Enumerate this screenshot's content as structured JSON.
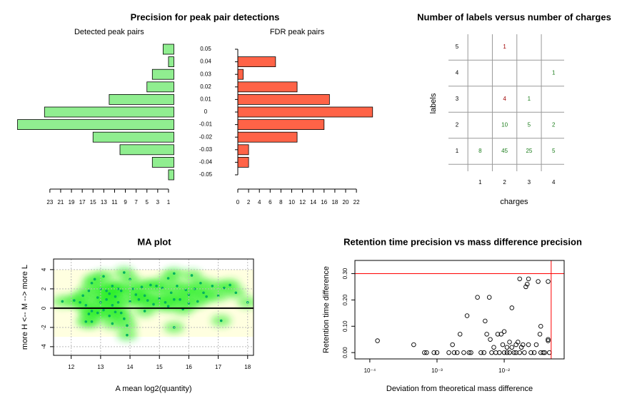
{
  "chart_data": [
    {
      "type": "hbar-pair",
      "title": "Precision for peak pair detections",
      "categories": [
        "0.05",
        "0.04",
        "0.03",
        "0.02",
        "0.01",
        "0",
        "-0.01",
        "-0.02",
        "-0.03",
        "-0.04",
        "-0.05"
      ],
      "series": [
        {
          "name": "Detected peak pairs",
          "color": "#90ee90",
          "values": [
            2,
            1,
            4,
            5,
            12,
            24,
            29,
            15,
            10,
            4,
            1
          ],
          "xlim": [
            29,
            0
          ],
          "xticks": [
            23,
            21,
            19,
            17,
            15,
            13,
            11,
            9,
            7,
            5,
            3,
            1
          ]
        },
        {
          "name": "FDR peak pairs",
          "color": "#ff6347",
          "values": [
            0,
            7,
            1,
            11,
            17,
            25,
            16,
            11,
            2,
            2,
            0
          ],
          "xlim": [
            0,
            25
          ],
          "xticks": [
            0,
            2,
            4,
            6,
            8,
            10,
            12,
            14,
            16,
            18,
            20,
            22
          ]
        }
      ]
    },
    {
      "type": "count-grid",
      "title": "Number of labels versus number of charges",
      "xlabel": "charges",
      "ylabel": "labels",
      "xlim": [
        0,
        4.6
      ],
      "ylim": [
        0.5,
        5.5
      ],
      "xticks": [
        1,
        2,
        3,
        4
      ],
      "yticks": [
        1,
        2,
        3,
        4,
        5
      ],
      "cells": [
        {
          "x": 1,
          "y": 1,
          "count": 8,
          "color": "#1b7d1b"
        },
        {
          "x": 2,
          "y": 1,
          "count": 45,
          "color": "#1b7d1b"
        },
        {
          "x": 3,
          "y": 1,
          "count": 25,
          "color": "#1b7d1b"
        },
        {
          "x": 4,
          "y": 1,
          "count": 5,
          "color": "#1b7d1b"
        },
        {
          "x": 2,
          "y": 2,
          "count": 10,
          "color": "#1b7d1b"
        },
        {
          "x": 3,
          "y": 2,
          "count": 5,
          "color": "#1b7d1b"
        },
        {
          "x": 4,
          "y": 2,
          "count": 2,
          "color": "#1b7d1b"
        },
        {
          "x": 2,
          "y": 3,
          "count": 4,
          "color": "#a00000"
        },
        {
          "x": 3,
          "y": 3,
          "count": 1,
          "color": "#1b7d1b"
        },
        {
          "x": 4,
          "y": 4,
          "count": 1,
          "color": "#1b7d1b"
        },
        {
          "x": 2,
          "y": 5,
          "count": 1,
          "color": "#a00000"
        }
      ]
    },
    {
      "type": "scatter",
      "title": "MA plot",
      "xlabel": "A   mean log2(quantity)",
      "ylabel": "more H <--     M     --> more L",
      "xlim": [
        11.4,
        18.2
      ],
      "ylim": [
        -4.9,
        5.1
      ],
      "xticks": [
        12,
        13,
        14,
        15,
        16,
        17,
        18
      ],
      "yticks": [
        -4,
        -2,
        0,
        2,
        4
      ],
      "grid": true,
      "density": true,
      "color": "#00b060",
      "hline": 0,
      "line_color": "#000000",
      "x": [
        12.4,
        12.6,
        12.7,
        12.8,
        12.5,
        12.7,
        12.6,
        12.5,
        12.7,
        12.9,
        12.3,
        11.7,
        12.1,
        13.0,
        13.1,
        13.2,
        13.3,
        13.4,
        13.5,
        13.6,
        13.7,
        13.2,
        13.0,
        13.4,
        13.6,
        13.5,
        13.3,
        13.7,
        13.8,
        13.4,
        13.9,
        13.9,
        13.8,
        14.0,
        14.1,
        14.2,
        14.3,
        14.0,
        14.4,
        14.5,
        14.6,
        14.7,
        14.8,
        15.0,
        15.1,
        15.2,
        15.3,
        15.5,
        15.4,
        15.6,
        15.7,
        15.9,
        16.0,
        16.1,
        15.5,
        15.5,
        15.8,
        16.2,
        16.3,
        16.5,
        16.4,
        16.6,
        16.8,
        17.0,
        17.2,
        17.4,
        17.6,
        17.1,
        18.0,
        14.5,
        12.9,
        13.1,
        14.9,
        16.0,
        15.3
      ],
      "y": [
        1.3,
        1.8,
        2.6,
        3.0,
        0.3,
        -0.3,
        -0.6,
        -1.4,
        -1.4,
        -0.5,
        0.6,
        0.7,
        0.8,
        2.0,
        3.3,
        1.8,
        1.5,
        2.3,
        1.2,
        2.0,
        1.8,
        0.9,
        0.6,
        0.3,
        0.6,
        -0.4,
        -0.8,
        -0.5,
        -1.1,
        -1.6,
        -1.8,
        -2.8,
        3.7,
        3.0,
        2.0,
        1.4,
        0.9,
        0.7,
        2.2,
        -0.3,
        0.8,
        2.4,
        0.4,
        1.0,
        2.1,
        0.6,
        0.2,
        3.6,
        1.6,
        2.3,
        0.9,
        1.9,
        0.5,
        3.4,
        -2.0,
        0.9,
        -0.1,
        2.0,
        0.7,
        1.6,
        2.6,
        1.2,
        2.3,
        1.3,
        2.1,
        2.4,
        1.6,
        -1.3,
        0.6,
        1.3,
        1.1,
        -0.2,
        2.3,
        1.4,
        3.1
      ]
    },
    {
      "type": "scatter",
      "title": "Retention time precision vs mass difference precision",
      "xlabel": "Deviation from theoretical mass difference",
      "ylabel": "Retention time difference",
      "log_x": true,
      "xlim": [
        6e-05,
        0.078
      ],
      "ylim": [
        -0.024,
        0.35
      ],
      "xticks": [
        {
          "value": 0.0001,
          "label": "10⁻⁴"
        },
        {
          "value": 0.001,
          "label": "10⁻³"
        },
        {
          "value": 0.01,
          "label": "10⁻²"
        }
      ],
      "yticks": [
        {
          "value": 0,
          "label": "0.00"
        },
        {
          "value": 0.1,
          "label": "0.10"
        },
        {
          "value": 0.2,
          "label": "0.20"
        },
        {
          "value": 0.3,
          "label": "0.30"
        }
      ],
      "grid": false,
      "density": false,
      "color": "#000000",
      "hollow": true,
      "vline": 0.05,
      "hline": 0.3,
      "line_color": "#ff0000",
      "x": [
        0.00013,
        0.00045,
        0.00065,
        0.0007,
        0.0009,
        0.001,
        0.0015,
        0.0017,
        0.0018,
        0.002,
        0.0022,
        0.0025,
        0.0028,
        0.003,
        0.0032,
        0.004,
        0.0045,
        0.005,
        0.0052,
        0.0055,
        0.006,
        0.0062,
        0.0065,
        0.007,
        0.0075,
        0.008,
        0.0085,
        0.009,
        0.0095,
        0.01,
        0.01,
        0.011,
        0.011,
        0.012,
        0.012,
        0.013,
        0.013,
        0.014,
        0.015,
        0.015,
        0.016,
        0.017,
        0.017,
        0.018,
        0.019,
        0.02,
        0.021,
        0.022,
        0.023,
        0.023,
        0.025,
        0.028,
        0.03,
        0.032,
        0.034,
        0.035,
        0.035,
        0.038,
        0.04,
        0.045,
        0.045,
        0.045,
        0.047
      ],
      "y": [
        0.045,
        0.03,
        0,
        0,
        0,
        0,
        0,
        0.03,
        0,
        0,
        0.07,
        0,
        0.14,
        0,
        0,
        0.21,
        0,
        0,
        0.12,
        0.07,
        0.21,
        0.05,
        0,
        0.02,
        0,
        0.07,
        0,
        0.07,
        0.03,
        0,
        0.08,
        0.02,
        0,
        0.04,
        0,
        0.17,
        0.02,
        0,
        0.03,
        0,
        0.04,
        0.28,
        0,
        0.02,
        0.03,
        0,
        0.25,
        0.26,
        0.28,
        0.03,
        0,
        0,
        0.03,
        0.27,
        0.07,
        0.1,
        0,
        0,
        0,
        0.05,
        0.045,
        0.27,
        0
      ]
    }
  ]
}
